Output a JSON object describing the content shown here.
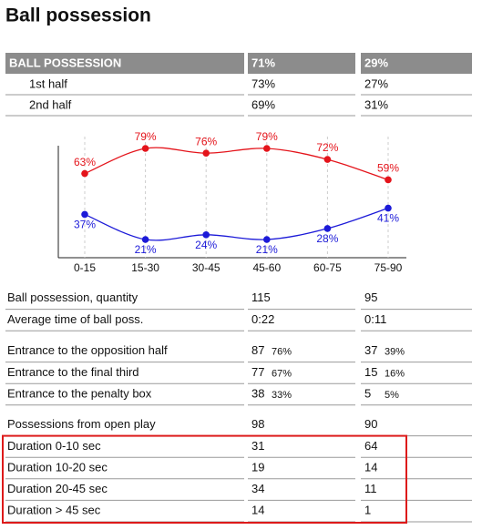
{
  "title": "Ball possession",
  "summary": {
    "header": [
      "BALL POSSESSION",
      "71%",
      "29%"
    ],
    "rows": [
      [
        "1st half",
        "73%",
        "27%"
      ],
      [
        "2nd half",
        "69%",
        "31%"
      ]
    ]
  },
  "chart_data": {
    "type": "line",
    "categories": [
      "0-15",
      "15-30",
      "30-45",
      "45-60",
      "60-75",
      "75-90"
    ],
    "series": [
      {
        "color": "#e4141b",
        "values": [
          63,
          79,
          76,
          79,
          72,
          59
        ],
        "value_labels": [
          "63%",
          "79%",
          "76%",
          "79%",
          "72%",
          "59%"
        ]
      },
      {
        "color": "#1c1ad8",
        "values": [
          37,
          21,
          24,
          21,
          28,
          41
        ],
        "value_labels": [
          "37%",
          "21%",
          "24%",
          "21%",
          "28%",
          "41%"
        ]
      }
    ]
  },
  "stats": [
    [
      {
        "label": "Ball possession, quantity",
        "home": "115",
        "away": "95"
      },
      {
        "label": "Average time of ball poss.",
        "home": "0:22",
        "away": "0:11"
      }
    ],
    [
      {
        "label": "Entrance to the opposition half",
        "home": "87",
        "home_pct": "76%",
        "away": "37",
        "away_pct": "39%"
      },
      {
        "label": "Entrance to the final third",
        "home": "77",
        "home_pct": "67%",
        "away": "15",
        "away_pct": "16%"
      },
      {
        "label": "Entrance to the penalty box",
        "home": "38",
        "home_pct": "33%",
        "away": "5",
        "away_pct": "5%"
      }
    ],
    [
      {
        "label": "Possessions from open play",
        "home": "98",
        "away": "90"
      },
      {
        "label": "Duration  0-10 sec",
        "home": "31",
        "away": "64"
      },
      {
        "label": "Duration  10-20 sec",
        "home": "19",
        "away": "14"
      },
      {
        "label": "Duration  20-45 sec",
        "home": "34",
        "away": "11"
      },
      {
        "label": "Duration  > 45 sec",
        "home": "14",
        "away": "1"
      }
    ]
  ]
}
